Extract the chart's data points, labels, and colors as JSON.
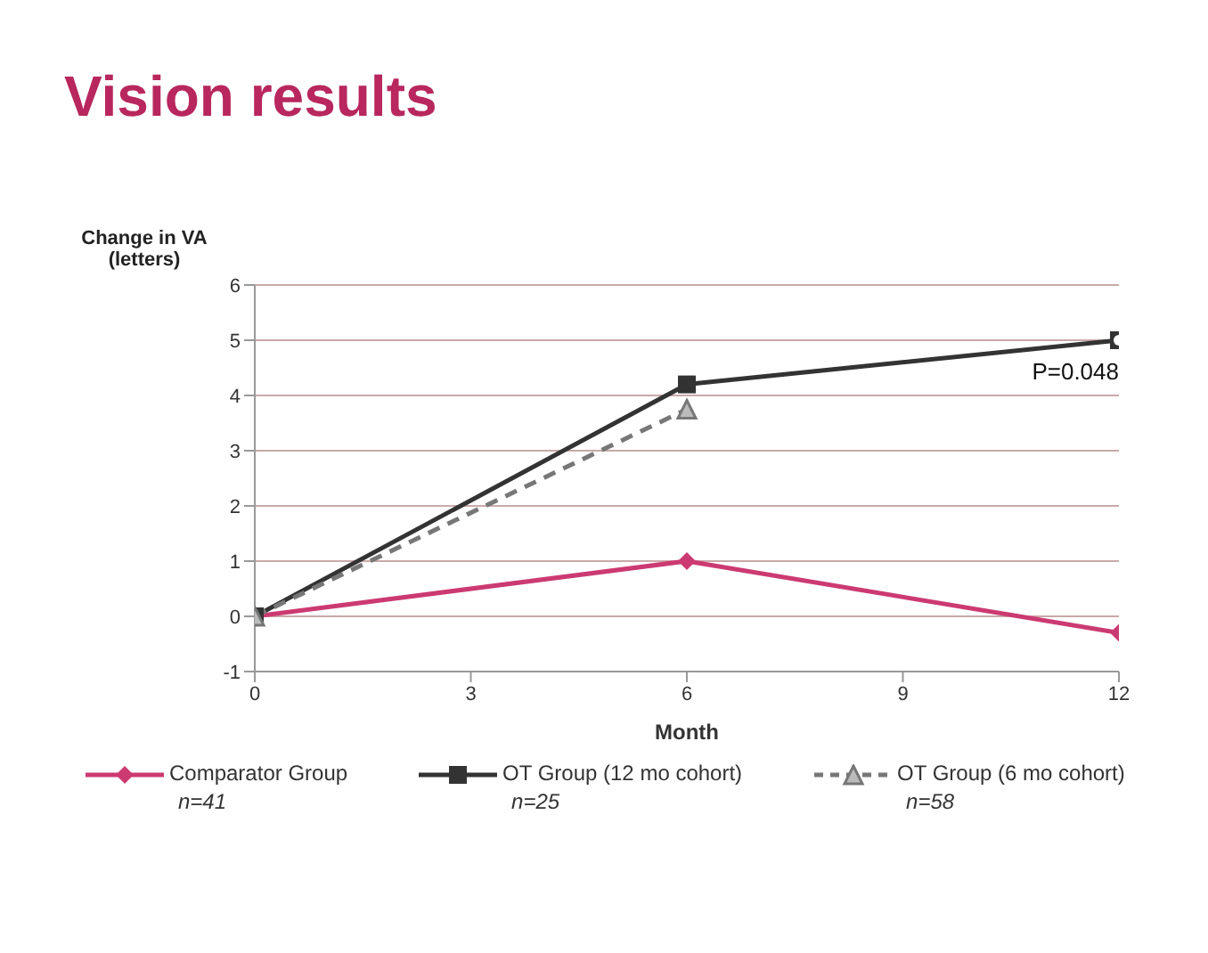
{
  "chart_data": {
    "type": "line",
    "title": "Vision results",
    "xlabel": "Month",
    "ylabel": "Change in VA\n(letters)",
    "x": [
      0,
      6,
      12
    ],
    "xlim": [
      0,
      12
    ],
    "xticks": [
      0,
      3,
      6,
      9,
      12
    ],
    "ylim": [
      -1,
      6
    ],
    "yticks": [
      -1,
      0,
      1,
      2,
      3,
      4,
      5,
      6
    ],
    "grid": "y",
    "legend": "bottom",
    "series": [
      {
        "name": "Comparator Group\nn=41",
        "color": "#cc3a72",
        "values": [
          0,
          1,
          -0.3
        ],
        "marker": "diamond",
        "line_style": "solid"
      },
      {
        "name": "OT Group (12 mo cohort)\nn=25",
        "color": "#333333",
        "values": [
          0,
          4.2,
          5
        ],
        "marker": "square",
        "line_style": "solid"
      },
      {
        "name": "OT Group (6 mo cohort)\nn=58",
        "color": "#777777",
        "x": [
          0,
          6
        ],
        "values": [
          0,
          3.75
        ],
        "marker": "triangle",
        "line_style": "dashed"
      }
    ],
    "annotations": [
      {
        "text": "P=0.048",
        "x": 12,
        "y": 5
      }
    ]
  }
}
